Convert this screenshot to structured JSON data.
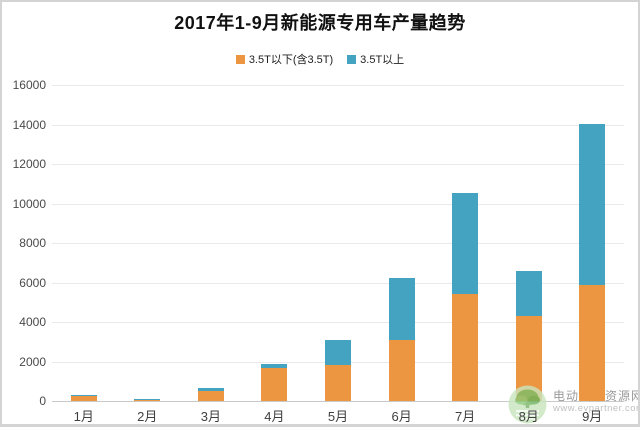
{
  "page": {
    "title": "2017年1-9月新能源专用车产量趋势"
  },
  "watermark": {
    "site_name": "电动汽车资源网",
    "site_url": "www.evpartner.com",
    "logo": "green-tree-logo",
    "logo_color": "#7cc06a"
  },
  "chart_data": {
    "type": "bar",
    "stacked": true,
    "title": "2017年1-9月新能源专用车产量趋势",
    "categories": [
      "1月",
      "2月",
      "3月",
      "4月",
      "5月",
      "6月",
      "7月",
      "8月",
      "9月"
    ],
    "series": [
      {
        "name": "3.5T以下(含3.5T)",
        "color": "#ED9642",
        "values": [
          250,
          50,
          500,
          1650,
          1830,
          3100,
          5430,
          4280,
          5900
        ]
      },
      {
        "name": "3.5T以上",
        "color": "#43A3C0",
        "values": [
          60,
          70,
          170,
          210,
          1240,
          3130,
          5080,
          2320,
          8150
        ]
      }
    ],
    "totals": [
      310,
      120,
      670,
      1860,
      3070,
      6230,
      10510,
      6600,
      14050
    ],
    "xlabel": "",
    "ylabel": "",
    "ylim": [
      0,
      16000
    ],
    "ytick_step": 2000,
    "yticks": [
      0,
      2000,
      4000,
      6000,
      8000,
      10000,
      12000,
      14000,
      16000
    ],
    "grid": true,
    "legend_position": "top-center",
    "grid_color": "#e9e9e9",
    "axis_color": "#c9c9c9",
    "tick_label_color": "#4a4a4a"
  }
}
